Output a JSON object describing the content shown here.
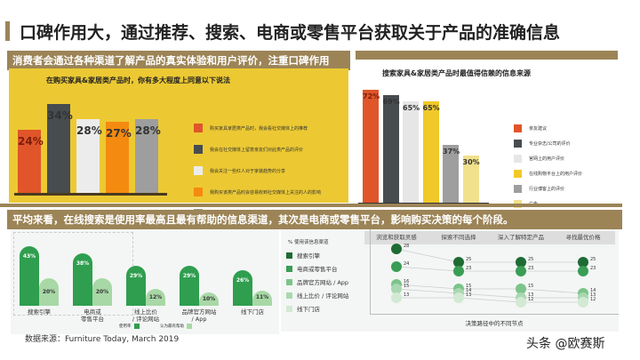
{
  "title": "口碑作用大，通过推荐、搜索、电商或零售平台获取关于产品的准确信息",
  "banner1": "消费者会通过各种渠道了解产品的真实体验和用户评价，注重口碑作用",
  "banner2": "平均来看，在线搜索是使用率最高且最有帮助的信息渠道，其次是电商或零售平台，影响购买决策的每个阶段。",
  "source": "数据来源：Furniture Today, March 2019",
  "watermark": "头条 @欧赛斯",
  "chart_data": [
    {
      "type": "bar",
      "title": "在购买家具&家居类产品时，你有多大程度上同意以下说法",
      "ylim": [
        0,
        40
      ],
      "categories": [
        "购买家具家居类产品时，我会看社交媒体上的推荐",
        "我会在社交媒体上留意亲友们对此类产品的评价",
        "我会关注一些红人对于家装趋势的分享",
        "我购买该类产品时会容易收到社交媒体上关注的人的影响",
        "我购买该类产品时会晒在朋友圈"
      ],
      "values": [
        24,
        34,
        28,
        27,
        28
      ],
      "labels": [
        "24%",
        "34%",
        "28%",
        "27%",
        "28%"
      ],
      "colors": [
        "#e0552a",
        "#474c4f",
        "#ececec",
        "#f58a10",
        "#9e9e9e"
      ],
      "legend": "right"
    },
    {
      "type": "bar",
      "title": "搜索家具&家居类产品时最值得信赖的信息来源",
      "ylim": [
        0,
        75
      ],
      "categories": [
        "亲友建议",
        "专业杂志/公司的评价",
        "官网上的用户评价",
        "在线购物平台上的用户评价",
        "行业博客上的评价",
        "广告"
      ],
      "values": [
        72,
        69,
        65,
        65,
        37,
        30
      ],
      "labels": [
        "72%",
        "69%",
        "65%",
        "65%",
        "37%",
        "30%"
      ],
      "colors": [
        "#e0552a",
        "#474c4f",
        "#e6e6e6",
        "#f0c829",
        "#9e9e9e",
        "#f1e08c"
      ],
      "legend": "right"
    },
    {
      "type": "bar",
      "categories": [
        "搜索引擎",
        "电商或\n零售平台",
        "线上比价\n/ 评论网站",
        "品牌官方网站\n/ App",
        "线下门店"
      ],
      "series": [
        {
          "name": "使用率",
          "values": [
            43,
            38,
            29,
            29,
            26
          ],
          "labels": [
            "43%",
            "38%",
            "29%",
            "29%",
            "26%"
          ],
          "color": "#2f9e4f"
        },
        {
          "name": "认为最有帮助",
          "values": [
            20,
            20,
            12,
            10,
            11
          ],
          "labels": [
            "20%",
            "20%",
            "12%",
            "10%",
            "11%"
          ],
          "color": "#a8d8a6"
        }
      ],
      "legend": "bottom"
    },
    {
      "type": "line",
      "legend_title": "% 使用该信息渠道",
      "xlabel": "决策路径中的不同节点",
      "categories": [
        "浏览和获取灵感",
        "探索不同选择",
        "深入了解特定产品",
        "寻找最优价格"
      ],
      "series": [
        {
          "name": "搜索引擎",
          "values": [
            28,
            25,
            25,
            25
          ],
          "color": "#1e6b34"
        },
        {
          "name": "电商或零售平台",
          "values": [
            24,
            23,
            23,
            23
          ],
          "color": "#3a9d55"
        },
        {
          "name": "品牌官方网站 / App",
          "values": [
            16,
            15,
            15,
            14
          ],
          "color": "#7cc48a"
        },
        {
          "name": "线上比价 / 评论网站",
          "values": [
            15,
            14,
            13,
            13
          ],
          "color": "#a9d8b0"
        },
        {
          "name": "线下门店",
          "values": [
            13,
            13,
            12,
            12
          ],
          "color": "#d2ead4"
        }
      ]
    }
  ]
}
